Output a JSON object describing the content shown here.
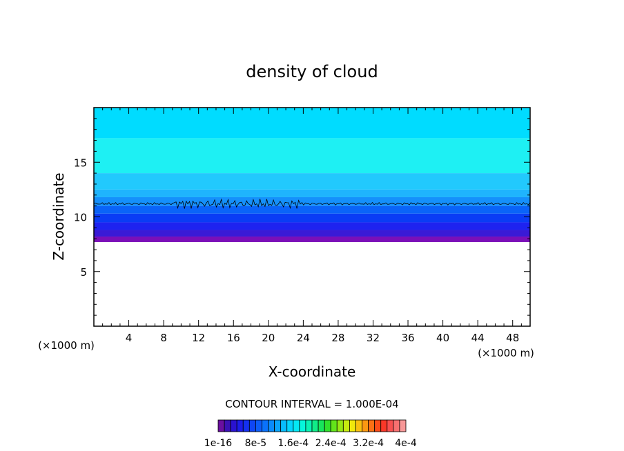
{
  "chart_data": {
    "type": "heatmap",
    "title": "density of cloud",
    "xlabel": "X-coordinate",
    "ylabel": "Z-coordinate",
    "x_unit_label": "(×1000 m)",
    "z_unit_label": "(×1000 m)",
    "xlim": [
      0,
      50
    ],
    "ylim": [
      0,
      20
    ],
    "x_ticks": [
      4,
      8,
      12,
      16,
      20,
      24,
      28,
      32,
      36,
      40,
      44,
      48
    ],
    "y_ticks": [
      5,
      10,
      15
    ],
    "contour_interval_text": "CONTOUR INTERVAL = 1.000E-04",
    "cloud_base_z": 8.0,
    "cloud_top_z": 20.0,
    "contour_line_z": 11.2,
    "turbulent_region_x": [
      9,
      24
    ],
    "bands": [
      {
        "z0": 7.7,
        "z1": 8.2,
        "color": "#7b0fb8"
      },
      {
        "z0": 8.2,
        "z1": 8.8,
        "color": "#3a1ad6"
      },
      {
        "z0": 8.8,
        "z1": 9.5,
        "color": "#1e23f0"
      },
      {
        "z0": 9.5,
        "z1": 10.3,
        "color": "#0a3cf5"
      },
      {
        "z0": 10.3,
        "z1": 11.0,
        "color": "#0a64f8"
      },
      {
        "z0": 11.0,
        "z1": 11.8,
        "color": "#1590fb"
      },
      {
        "z0": 11.8,
        "z1": 12.5,
        "color": "#1fb4fd"
      },
      {
        "z0": 12.5,
        "z1": 14.0,
        "color": "#22c9fd"
      },
      {
        "z0": 14.0,
        "z1": 17.2,
        "color": "#1ef0f3"
      },
      {
        "z0": 17.2,
        "z1": 20.0,
        "color": "#00dcff"
      }
    ],
    "colorbar": {
      "colors": [
        "#6a0fa0",
        "#3a11b4",
        "#2a12d0",
        "#1c1ce8",
        "#1430f0",
        "#0f46f5",
        "#0c5cf8",
        "#0a72fb",
        "#0a8afd",
        "#0aa3fd",
        "#08bcfe",
        "#05d4fe",
        "#04e8f4",
        "#06f6dc",
        "#0af2b4",
        "#10ec88",
        "#18e45c",
        "#30e02c",
        "#62e41a",
        "#96e814",
        "#c6ec10",
        "#f0e80c",
        "#f8c010",
        "#fa9812",
        "#fc7014",
        "#fc4c18",
        "#fa3828",
        "#f85050",
        "#f87070",
        "#f89898"
      ],
      "tick_labels": [
        "1e-16",
        "8e-5",
        "1.6e-4",
        "2.4e-4",
        "3.2e-4",
        "4e-4"
      ]
    }
  }
}
